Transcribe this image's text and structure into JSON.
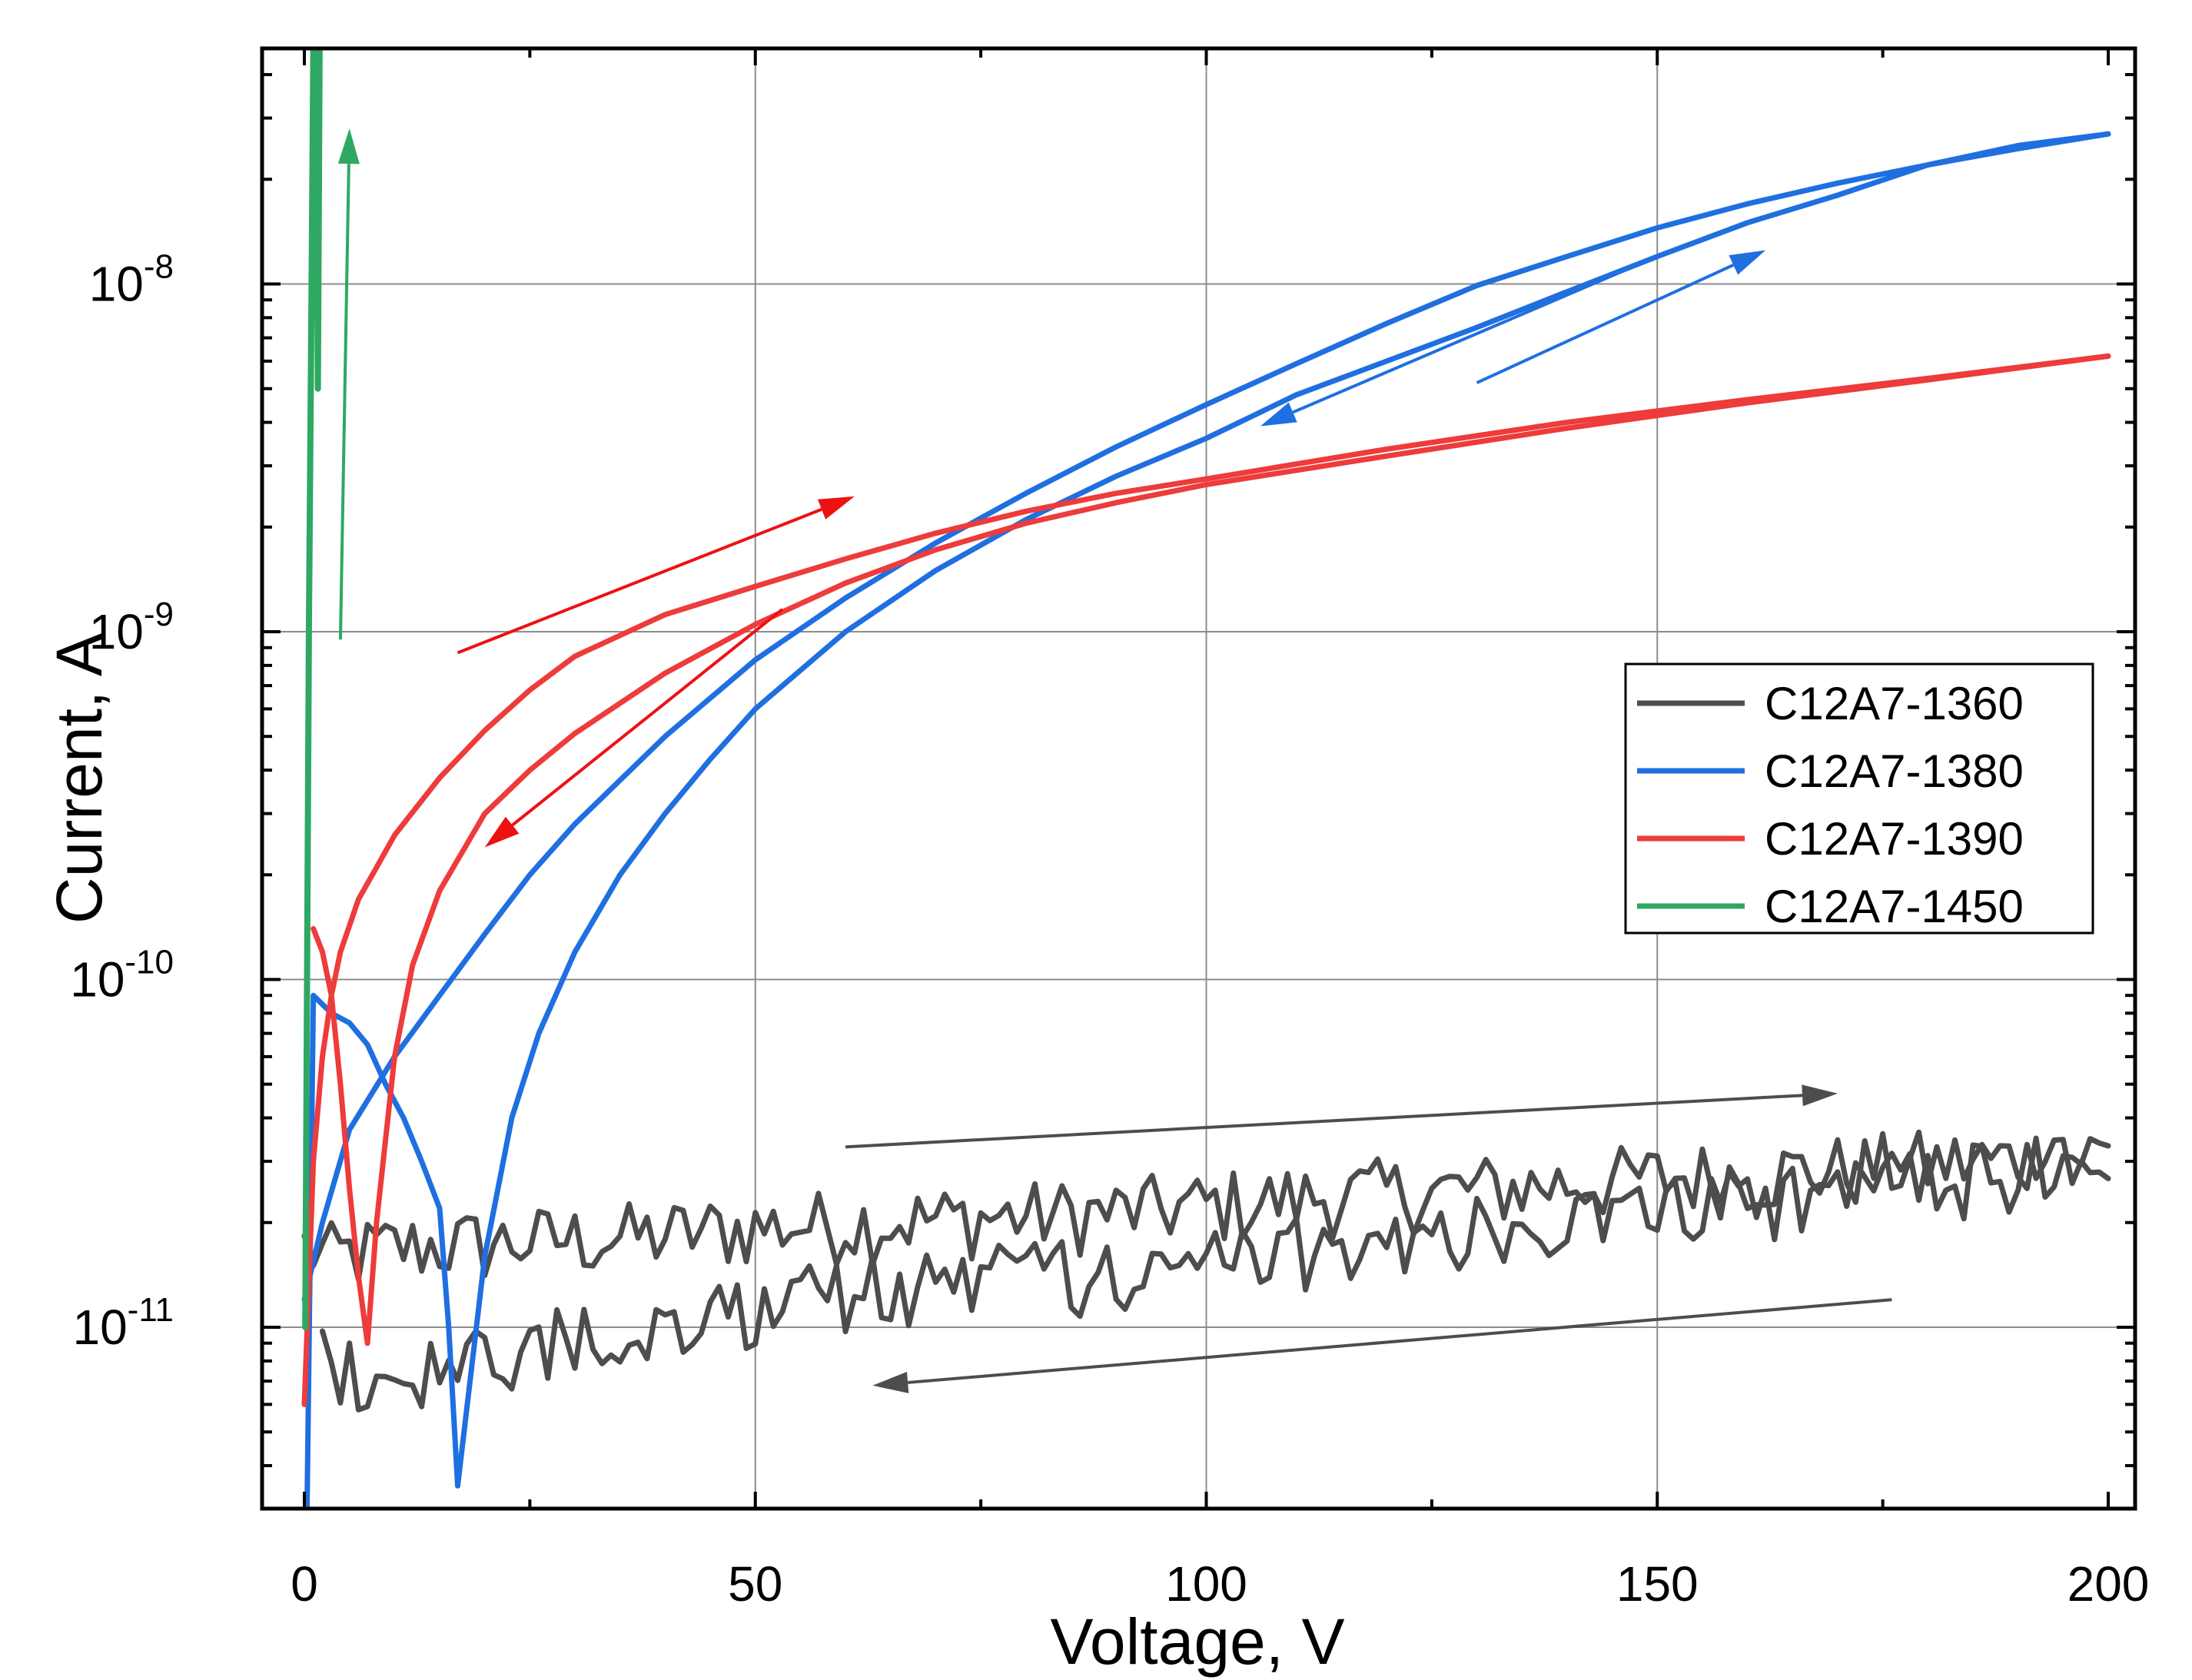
{
  "chart_data": {
    "type": "line",
    "title": "",
    "xlabel": "Voltage, V",
    "ylabel": "Current, A",
    "xlim": [
      -5,
      205
    ],
    "ylim_log10": [
      -11.52,
      -7.32
    ],
    "y_scale": "log",
    "grid": true,
    "x_ticks": [
      {
        "value": 0,
        "label": "0"
      },
      {
        "value": 50,
        "label": "50"
      },
      {
        "value": 100,
        "label": "100"
      },
      {
        "value": 150,
        "label": "150"
      },
      {
        "value": 200,
        "label": "200"
      }
    ],
    "y_ticks": [
      {
        "log": -8,
        "base": "10",
        "exp": "-8"
      },
      {
        "log": -9,
        "base": "10",
        "exp": "-9"
      },
      {
        "log": -10,
        "base": "10",
        "exp": "-10"
      },
      {
        "log": -11,
        "base": "10",
        "exp": "-11"
      }
    ],
    "legend_position": "right",
    "series": [
      {
        "name": "C12A7-1360",
        "color": "#4d4d4d",
        "noisy": true,
        "forward": {
          "x": [
            0,
            3,
            10,
            20,
            30,
            40,
            50,
            60,
            70,
            80,
            90,
            100,
            110,
            120,
            130,
            140,
            150,
            160,
            170,
            180,
            190,
            200
          ],
          "y": [
            1.7e-11,
            1.6e-11,
            1.7e-11,
            1.75e-11,
            1.8e-11,
            1.85e-11,
            1.95e-11,
            2e-11,
            2.05e-11,
            2.1e-11,
            2.15e-11,
            2.25e-11,
            2.35e-11,
            2.45e-11,
            2.5e-11,
            2.6e-11,
            2.7e-11,
            2.75e-11,
            2.85e-11,
            2.95e-11,
            3.05e-11,
            3.2e-11
          ]
        },
        "reverse": {
          "x": [
            200,
            190,
            180,
            170,
            160,
            150,
            140,
            130,
            120,
            110,
            100,
            90,
            80,
            70,
            60,
            50,
            40,
            30,
            20,
            15,
            10,
            5,
            2
          ],
          "y": [
            2.9e-11,
            2.8e-11,
            2.6e-11,
            2.45e-11,
            2.3e-11,
            2.15e-11,
            2.05e-11,
            1.95e-11,
            1.75e-11,
            1.65e-11,
            1.5e-11,
            1.45e-11,
            1.4e-11,
            1.35e-11,
            1.25e-11,
            1.15e-11,
            1.05e-11,
            9.5e-12,
            8.5e-12,
            8e-12,
            7.5e-12,
            7.5e-12,
            8e-12
          ]
        }
      },
      {
        "name": "C12A7-1380",
        "color": "#1f6fe0",
        "forward": {
          "x": [
            17,
            20,
            23,
            26,
            30,
            35,
            40,
            45,
            50,
            60,
            70,
            80,
            90,
            100,
            110,
            120,
            130,
            140,
            150,
            160,
            170,
            180,
            190,
            200
          ],
          "y": [
            3.5e-12,
            1.6e-11,
            4e-11,
            7e-11,
            1.2e-10,
            2e-10,
            3e-10,
            4.3e-10,
            6e-10,
            1e-09,
            1.5e-09,
            2.1e-09,
            2.8e-09,
            3.6e-09,
            4.8e-09,
            6e-09,
            7.5e-09,
            9.5e-09,
            1.2e-08,
            1.5e-08,
            1.8e-08,
            2.2e-08,
            2.5e-08,
            2.7e-08
          ]
        },
        "reverse": {
          "x": [
            200,
            190,
            180,
            170,
            160,
            150,
            140,
            130,
            120,
            110,
            100,
            90,
            80,
            70,
            60,
            50,
            40,
            30,
            25,
            20,
            15,
            10,
            5,
            2,
            0
          ],
          "y": [
            2.7e-08,
            2.45e-08,
            2.2e-08,
            1.95e-08,
            1.7e-08,
            1.45e-08,
            1.2e-08,
            9.9e-09,
            7.7e-09,
            5.9e-09,
            4.5e-09,
            3.4e-09,
            2.5e-09,
            1.8e-09,
            1.25e-09,
            8.3e-10,
            5e-10,
            2.8e-10,
            2e-10,
            1.35e-10,
            9e-11,
            6e-11,
            3.7e-11,
            2e-11,
            1.2e-11
          ]
        },
        "low_branch": {
          "x": [
            0.3,
            1,
            3,
            5,
            7,
            9,
            11,
            13,
            15,
            16,
            17
          ],
          "y": [
            3e-12,
            9e-11,
            8e-11,
            7.5e-11,
            6.5e-11,
            5e-11,
            4e-11,
            3e-11,
            2.2e-11,
            1e-11,
            3.5e-12
          ]
        }
      },
      {
        "name": "C12A7-1390",
        "color": "#ee3b3b",
        "forward": {
          "x": [
            0,
            1,
            2,
            3,
            4,
            6,
            8,
            10,
            15,
            20,
            25,
            30,
            40,
            50,
            60,
            70,
            80,
            90,
            100,
            120,
            140,
            160,
            180,
            200
          ],
          "y": [
            6e-12,
            3e-11,
            6e-11,
            9e-11,
            1.2e-10,
            1.7e-10,
            2.1e-10,
            2.6e-10,
            3.8e-10,
            5.2e-10,
            6.8e-10,
            8.5e-10,
            1.12e-09,
            1.35e-09,
            1.62e-09,
            1.92e-09,
            2.22e-09,
            2.5e-09,
            2.75e-09,
            3.35e-09,
            4e-09,
            4.65e-09,
            5.35e-09,
            6.2e-09
          ]
        },
        "reverse": {
          "x": [
            200,
            180,
            160,
            140,
            120,
            100,
            90,
            80,
            70,
            60,
            50,
            40,
            30,
            25,
            20,
            15,
            12,
            10,
            8,
            7
          ],
          "y": [
            6.2e-09,
            5.3e-09,
            4.55e-09,
            3.85e-09,
            3.2e-09,
            2.65e-09,
            2.35e-09,
            2.05e-09,
            1.72e-09,
            1.38e-09,
            1.05e-09,
            7.6e-10,
            5.1e-10,
            4e-10,
            3e-10,
            1.8e-10,
            1.1e-10,
            6e-11,
            2e-11,
            9e-12
          ]
        },
        "low_branch": {
          "x": [
            1,
            2,
            3,
            4,
            5,
            6,
            7
          ],
          "y": [
            1.4e-10,
            1.2e-10,
            9e-11,
            5e-11,
            2.5e-11,
            1.4e-11,
            9e-12
          ]
        }
      },
      {
        "name": "C12A7-1450",
        "color": "#2ea862",
        "forward": {
          "x": [
            0.1,
            0.3,
            0.5,
            0.8,
            1.0,
            1.3,
            1.5,
            1.7
          ],
          "y": [
            1e-11,
            1e-10,
            1e-09,
            1e-08,
            4.8e-08,
            5e-08,
            5e-09,
            5e-08
          ]
        }
      }
    ],
    "annotations": [
      {
        "type": "arrow",
        "color": "#2ea862",
        "from": [
          4.0,
          9.5e-10
        ],
        "to": [
          5.0,
          2.8e-08
        ]
      },
      {
        "type": "arrow",
        "color": "#1f6fe0",
        "from": [
          130,
          5.2e-09
        ],
        "to": [
          162,
          1.25e-08
        ]
      },
      {
        "type": "arrow",
        "color": "#1f6fe0",
        "from": [
          150,
          1.2e-08
        ],
        "to": [
          106,
          3.9e-09
        ]
      },
      {
        "type": "arrow",
        "color": "#ee1111",
        "from": [
          17,
          8.7e-10
        ],
        "to": [
          61,
          2.45e-09
        ]
      },
      {
        "type": "arrow",
        "color": "#ee1111",
        "from": [
          53,
          1.16e-09
        ],
        "to": [
          20,
          2.4e-10
        ]
      },
      {
        "type": "arrow",
        "color": "#4d4d4d",
        "from": [
          60,
          3.3e-11
        ],
        "to": [
          170,
          4.7e-11
        ]
      },
      {
        "type": "arrow",
        "color": "#4d4d4d",
        "from": [
          176,
          1.2e-11
        ],
        "to": [
          63,
          6.8e-12
        ]
      }
    ]
  }
}
